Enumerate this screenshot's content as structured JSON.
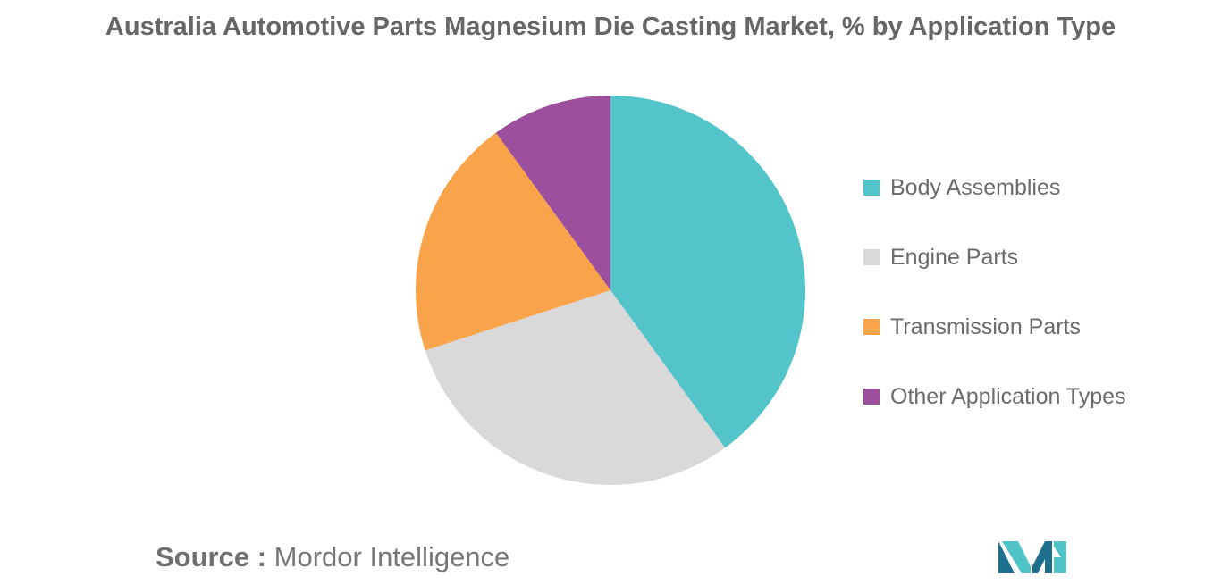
{
  "chart_data": {
    "type": "pie",
    "title": "Australia Automotive Parts Magnesium Die Casting Market, % by Application Type",
    "categories": [
      "Body Assemblies",
      "Engine Parts",
      "Transmission Parts",
      "Other Application Types"
    ],
    "values": [
      40,
      30,
      20,
      10
    ],
    "colors": [
      "#52c4ca",
      "#d9d9d9",
      "#f9a44a",
      "#9b4f9d"
    ],
    "legend_placement": "right",
    "start_angle_deg": 0,
    "direction": "clockwise"
  },
  "source": {
    "label": "Source :",
    "text": "Mordor Intelligence"
  },
  "logo": {
    "icon": "mordor-intelligence-logo-icon",
    "colors": [
      "#1e6f8f",
      "#4fc3c8"
    ]
  }
}
